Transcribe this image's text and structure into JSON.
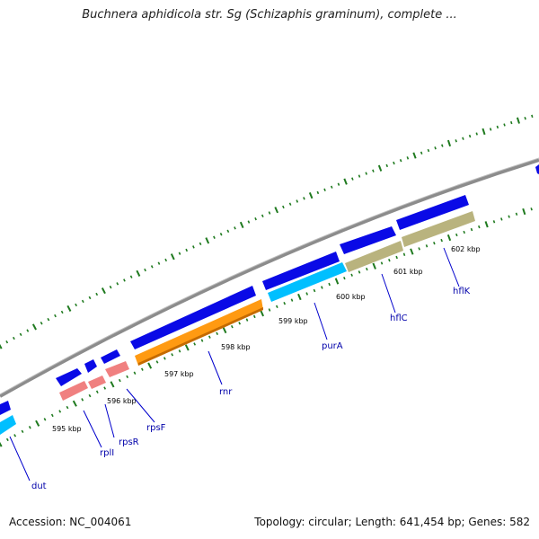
{
  "title": "Buchnera aphidicola str. Sg (Schizaphis graminum), complete ...",
  "colors": {
    "backbone": "#8c8c8c",
    "cds": "#0a0ae6",
    "trna": "#f08080",
    "rrna": "#00bfff",
    "orange": "#ff9a12",
    "olive": "#b9b37e",
    "label": "#0000aa",
    "tick": "#1f7a1f"
  },
  "ticks": [
    "595 kbp",
    "596 kbp",
    "597 kbp",
    "598 kbp",
    "599 kbp",
    "600 kbp",
    "601 kbp",
    "602 kbp"
  ],
  "genes": [
    "dut",
    "rplI",
    "rpsR",
    "rpsF",
    "rnr",
    "purA",
    "hflC",
    "hflK"
  ],
  "footer": {
    "accession": "Accession: NC_004061",
    "stats": "Topology: circular; Length: 641,454 bp; Genes: 582"
  }
}
